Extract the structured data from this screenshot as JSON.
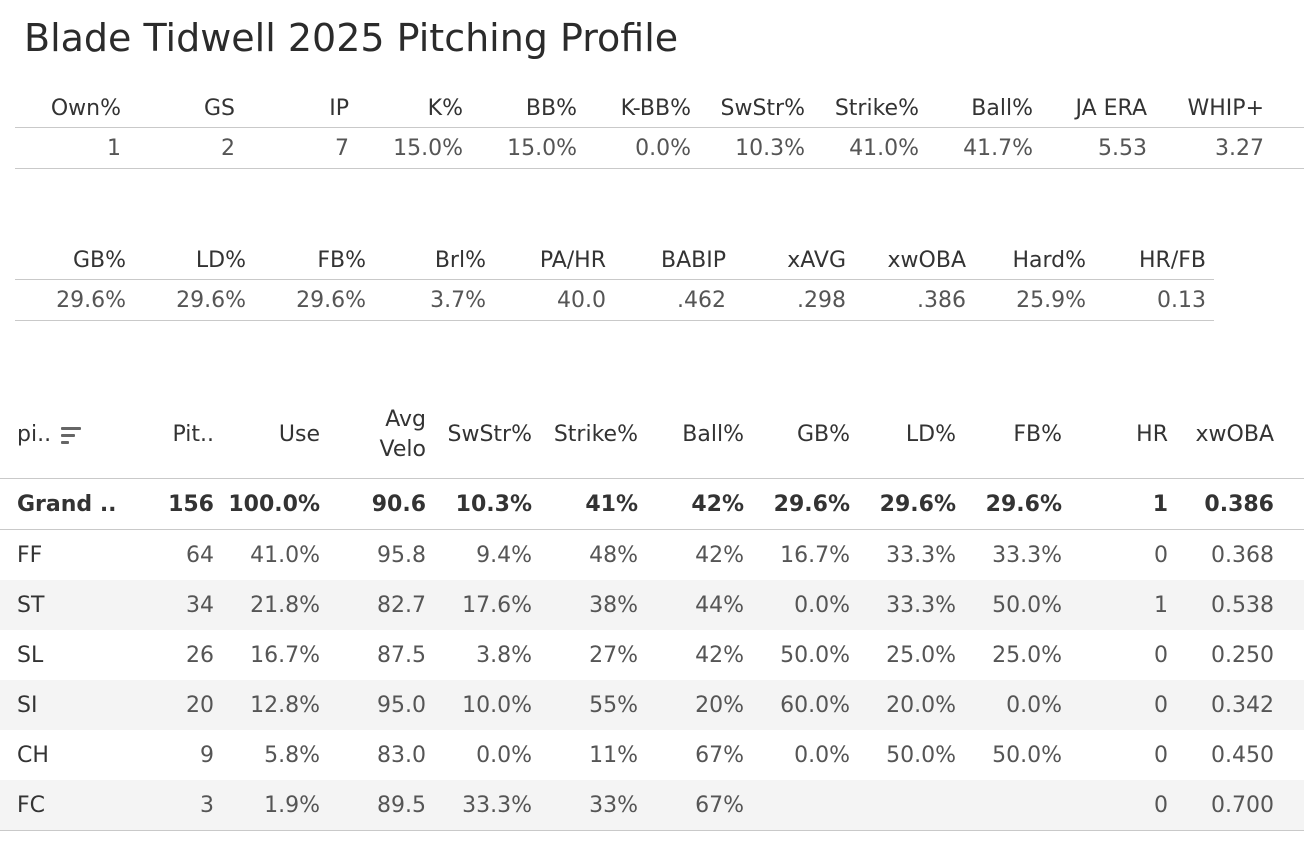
{
  "title": "Blade Tidwell 2025 Pitching Profile",
  "summary1": {
    "headers": [
      "Own%",
      "GS",
      "IP",
      "K%",
      "BB%",
      "K-BB%",
      "SwStr%",
      "Strike%",
      "Ball%",
      "JA ERA",
      "WHIP+"
    ],
    "values": [
      "1",
      "2",
      "7",
      "15.0%",
      "15.0%",
      "0.0%",
      "10.3%",
      "41.0%",
      "41.7%",
      "5.53",
      "3.27"
    ]
  },
  "summary2": {
    "headers": [
      "GB%",
      "LD%",
      "FB%",
      "Brl%",
      "PA/HR",
      "BABIP",
      "xAVG",
      "xwOBA",
      "Hard%",
      "HR/FB"
    ],
    "values": [
      "29.6%",
      "29.6%",
      "29.6%",
      "3.7%",
      "40.0",
      ".462",
      ".298",
      ".386",
      "25.9%",
      "0.13"
    ]
  },
  "pitches": {
    "headers": {
      "pitch": "pi..",
      "count": "Pit..",
      "use": "Use",
      "velo_1": "Avg",
      "velo_2": "Velo",
      "swstr": "SwStr%",
      "strike": "Strike%",
      "ball": "Ball%",
      "gb": "GB%",
      "ld": "LD%",
      "fb": "FB%",
      "hr": "HR",
      "xwoba": "xwOBA"
    },
    "sort_icon": "sort-descending-icon",
    "rows": [
      [
        "Grand ..",
        "156",
        "100.0%",
        "90.6",
        "10.3%",
        "41%",
        "42%",
        "29.6%",
        "29.6%",
        "29.6%",
        "1",
        "0.386"
      ],
      [
        "FF",
        "64",
        "41.0%",
        "95.8",
        "9.4%",
        "48%",
        "42%",
        "16.7%",
        "33.3%",
        "33.3%",
        "0",
        "0.368"
      ],
      [
        "ST",
        "34",
        "21.8%",
        "82.7",
        "17.6%",
        "38%",
        "44%",
        "0.0%",
        "33.3%",
        "50.0%",
        "1",
        "0.538"
      ],
      [
        "SL",
        "26",
        "16.7%",
        "87.5",
        "3.8%",
        "27%",
        "42%",
        "50.0%",
        "25.0%",
        "25.0%",
        "0",
        "0.250"
      ],
      [
        "SI",
        "20",
        "12.8%",
        "95.0",
        "10.0%",
        "55%",
        "20%",
        "60.0%",
        "20.0%",
        "0.0%",
        "0",
        "0.342"
      ],
      [
        "CH",
        "9",
        "5.8%",
        "83.0",
        "0.0%",
        "11%",
        "67%",
        "0.0%",
        "50.0%",
        "50.0%",
        "0",
        "0.450"
      ],
      [
        "FC",
        "3",
        "1.9%",
        "89.5",
        "33.3%",
        "33%",
        "67%",
        "",
        "",
        "",
        "0",
        "0.700"
      ]
    ]
  }
}
